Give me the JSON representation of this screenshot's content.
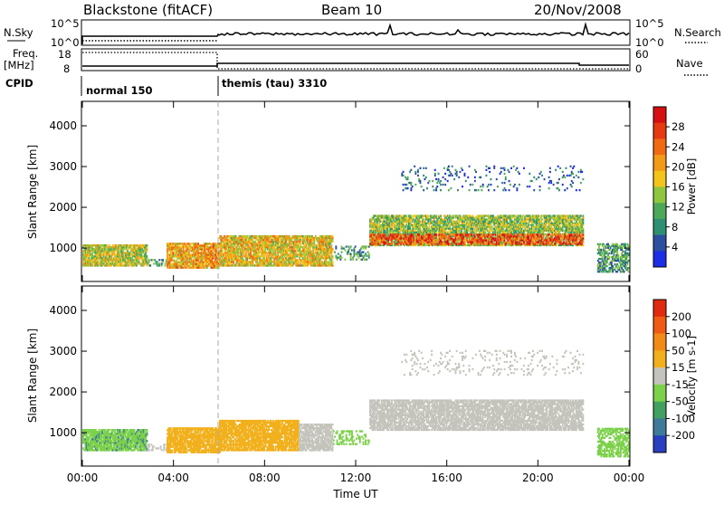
{
  "header": {
    "station": "Blackstone (fitACF)",
    "beam": "Beam 10",
    "date": "20/Nov/2008"
  },
  "panels_top": {
    "nsky_label": "N.Sky",
    "nsky_hi": "10^5",
    "nsky_lo": "10^0",
    "nsearch_label": "N.Search",
    "nsearch_hi": "10^5",
    "nsearch_lo": "10^0",
    "freq_label": "Freq.",
    "freq_unit": "[MHz]",
    "freq_hi": "18",
    "freq_lo": "8",
    "nave_label": "Nave",
    "nave_hi": "60",
    "nave_lo": "0",
    "cpid_label": "CPID",
    "cpid_modes": [
      {
        "name": "normal 150",
        "start_hour": 0
      },
      {
        "name": "themis (tau) 3310",
        "start_hour": 6
      }
    ]
  },
  "axes": {
    "ylabel": "Slant Range [km]",
    "xlabel": "Time UT",
    "yticks": [
      "1000",
      "2000",
      "3000",
      "4000"
    ],
    "xticks": [
      "00:00",
      "04:00",
      "08:00",
      "12:00",
      "16:00",
      "20:00",
      "00:00"
    ]
  },
  "colorbars": {
    "power": {
      "label": "Power [dB]",
      "colors": [
        "#1e2ee6",
        "#2e4fa0",
        "#2f8f72",
        "#4ea85a",
        "#8ec63f",
        "#f2c41c",
        "#f39a18",
        "#f06a14",
        "#e63a12",
        "#d61010"
      ],
      "ticks": [
        "4",
        "8",
        "12",
        "16",
        "20",
        "24",
        "28"
      ]
    },
    "velocity": {
      "label": "Velocity [m s-1]",
      "colors": [
        "#2a3fbf",
        "#3f7a9a",
        "#42a060",
        "#7cd14a",
        "#c4c4bc",
        "#f2b01c",
        "#f28a18",
        "#ef5a14",
        "#e02a10"
      ],
      "ticks": [
        "200",
        "100",
        "50",
        "15",
        "-15",
        "-50",
        "-100",
        "-200"
      ]
    }
  },
  "chart_data": [
    {
      "type": "heatmap",
      "title": "Power",
      "ylabel": "Slant Range [km]",
      "xlabel": "Time UT",
      "x_range_hours": [
        0,
        24
      ],
      "ylim": [
        180,
        4600
      ],
      "colorbar_label": "Power [dB]",
      "colorbar_ticks": [
        4,
        8,
        12,
        16,
        20,
        24,
        28
      ],
      "scatter_regions": [
        {
          "t0": 0.0,
          "t1": 2.8,
          "r_lo": 550,
          "r_hi": 1050,
          "power": 16,
          "density": 0.85
        },
        {
          "t0": 2.8,
          "t1": 3.7,
          "r_lo": 550,
          "r_hi": 700,
          "power": 10,
          "density": 0.35
        },
        {
          "t0": 3.7,
          "t1": 6.0,
          "r_lo": 500,
          "r_hi": 1100,
          "power": 20,
          "density": 0.85
        },
        {
          "t0": 6.0,
          "t1": 11.0,
          "r_lo": 550,
          "r_hi": 1300,
          "power": 18,
          "density": 0.85
        },
        {
          "t0": 11.0,
          "t1": 12.6,
          "r_lo": 700,
          "r_hi": 1050,
          "power": 10,
          "density": 0.3
        },
        {
          "t0": 12.6,
          "t1": 22.0,
          "r_lo": 1050,
          "r_hi": 1800,
          "power": 14,
          "density": 0.8
        },
        {
          "t0": 12.6,
          "t1": 22.0,
          "r_lo": 1080,
          "r_hi": 1350,
          "power": 26,
          "density": 0.6
        },
        {
          "t0": 14.0,
          "t1": 22.0,
          "r_lo": 2400,
          "r_hi": 3000,
          "power": 6,
          "density": 0.1
        },
        {
          "t0": 22.6,
          "t1": 24.0,
          "r_lo": 400,
          "r_hi": 1100,
          "power": 10,
          "density": 0.6
        }
      ]
    },
    {
      "type": "heatmap",
      "title": "Velocity",
      "ylabel": "Slant Range [km]",
      "xlabel": "Time UT",
      "x_range_hours": [
        0,
        24
      ],
      "ylim": [
        180,
        4600
      ],
      "colorbar_label": "Velocity [m s-1]",
      "colorbar_ticks": [
        200,
        100,
        50,
        15,
        -15,
        -50,
        -100,
        -200
      ],
      "scatter_regions": [
        {
          "t0": 0.0,
          "t1": 2.8,
          "r_lo": 550,
          "r_hi": 1050,
          "velocity": 40,
          "density": 0.85
        },
        {
          "t0": 2.8,
          "t1": 3.7,
          "r_lo": 550,
          "r_hi": 700,
          "velocity": 0,
          "density": 0.35
        },
        {
          "t0": 3.7,
          "t1": 6.0,
          "r_lo": 500,
          "r_hi": 1100,
          "velocity": -35,
          "density": 0.85
        },
        {
          "t0": 6.0,
          "t1": 9.5,
          "r_lo": 550,
          "r_hi": 1300,
          "velocity": -35,
          "density": 0.85
        },
        {
          "t0": 9.5,
          "t1": 11.0,
          "r_lo": 550,
          "r_hi": 1200,
          "velocity": 0,
          "density": 0.8
        },
        {
          "t0": 11.0,
          "t1": 12.6,
          "r_lo": 700,
          "r_hi": 1050,
          "velocity": 35,
          "density": 0.35
        },
        {
          "t0": 12.6,
          "t1": 22.0,
          "r_lo": 1050,
          "r_hi": 1800,
          "velocity": 0,
          "density": 0.8
        },
        {
          "t0": 14.0,
          "t1": 22.0,
          "r_lo": 2400,
          "r_hi": 3000,
          "velocity": 0,
          "density": 0.1
        },
        {
          "t0": 22.6,
          "t1": 24.0,
          "r_lo": 400,
          "r_hi": 1100,
          "velocity": 30,
          "density": 0.6
        }
      ]
    }
  ]
}
